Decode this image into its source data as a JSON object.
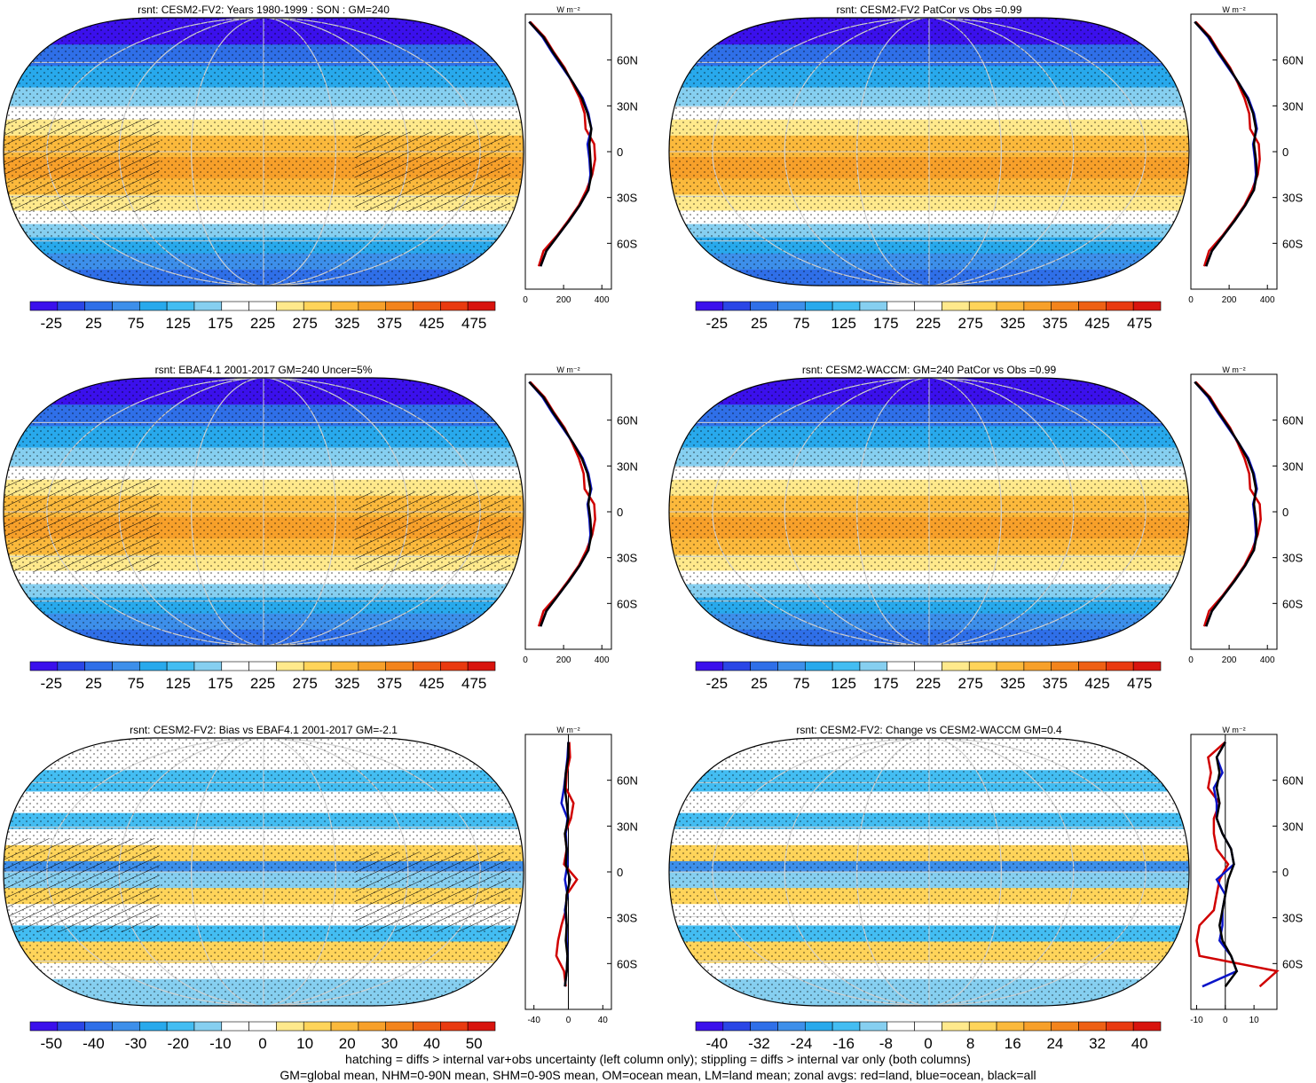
{
  "colors": {
    "cb_abs": [
      "#3b10ec",
      "#2a46e6",
      "#2f6fe8",
      "#3d8fea",
      "#28a9ec",
      "#43bdf2",
      "#86cff0",
      "#ffffff",
      "#ffffff",
      "#ffe98c",
      "#ffd45a",
      "#fbb93c",
      "#f7a02a",
      "#f3841c",
      "#ee6014",
      "#e93a10",
      "#d8140e"
    ],
    "cb_diff": [
      "#3b10ec",
      "#2a46e6",
      "#2f6fe8",
      "#3d8fea",
      "#28a9ec",
      "#43bdf2",
      "#86cff0",
      "#ffffff",
      "#ffffff",
      "#ffe98c",
      "#ffd45a",
      "#fbb93c",
      "#f7a02a",
      "#f3841c",
      "#ee6014",
      "#e93a10",
      "#d8140e"
    ],
    "land": "#d00000",
    "ocean": "#0a14c8",
    "all": "#000000"
  },
  "footer": {
    "line1": "hatching = diffs > internal var+obs uncertainty (left column only); stippling = diffs > internal var only (both columns)",
    "line2": "GM=global mean, NHM=0-90N mean, SHM=0-90S mean, OM=ocean mean, LM=land mean; zonal avgs: red=land, blue=ocean, black=all"
  },
  "chart_data": [
    {
      "type": "heatmap",
      "title": "rsnt: CESM2-FV2: Years 1980-1999 : SON : GM=240",
      "colorbar_labels": [
        "-25",
        "25",
        "75",
        "125",
        "175",
        "225",
        "275",
        "325",
        "375",
        "425",
        "475"
      ],
      "zonal_unit": "W m⁻²",
      "zonal_x_labels": [
        "0",
        "200",
        "400"
      ],
      "zonal_xlim": [
        0,
        450
      ],
      "lat_labels": [
        "60N",
        "30N",
        "0",
        "30S",
        "60S"
      ],
      "zonal_mean": {
        "lat": [
          85,
          75,
          65,
          55,
          45,
          35,
          25,
          15,
          5,
          -5,
          -15,
          -25,
          -35,
          -45,
          -55,
          -65,
          -75
        ],
        "all": [
          20,
          95,
          145,
          200,
          250,
          295,
          325,
          345,
          335,
          340,
          345,
          330,
          285,
          230,
          170,
          110,
          80
        ],
        "ocean": [
          20,
          90,
          140,
          195,
          250,
          300,
          330,
          345,
          325,
          335,
          340,
          330,
          285,
          230,
          170,
          110,
          80
        ],
        "land": [
          25,
          100,
          150,
          205,
          245,
          285,
          310,
          315,
          360,
          365,
          350,
          320,
          280,
          225,
          165,
          95,
          70
        ]
      }
    },
    {
      "type": "heatmap",
      "title": "rsnt: CESM2-FV2 PatCor vs Obs =0.99",
      "colorbar_labels": [
        "-25",
        "25",
        "75",
        "125",
        "175",
        "225",
        "275",
        "325",
        "375",
        "425",
        "475"
      ],
      "zonal_unit": "W m⁻²",
      "zonal_x_labels": [
        "0",
        "200",
        "400"
      ],
      "zonal_xlim": [
        0,
        450
      ],
      "lat_labels": [
        "60N",
        "30N",
        "0",
        "30S",
        "60S"
      ],
      "zonal_mean": {
        "lat": [
          85,
          75,
          65,
          55,
          45,
          35,
          25,
          15,
          5,
          -5,
          -15,
          -25,
          -35,
          -45,
          -55,
          -65,
          -75
        ],
        "all": [
          20,
          95,
          145,
          200,
          250,
          295,
          325,
          340,
          330,
          340,
          345,
          330,
          285,
          230,
          170,
          110,
          80
        ],
        "ocean": [
          20,
          90,
          140,
          195,
          250,
          300,
          330,
          345,
          325,
          335,
          340,
          330,
          285,
          230,
          170,
          110,
          80
        ],
        "land": [
          25,
          100,
          150,
          205,
          245,
          280,
          305,
          310,
          355,
          360,
          350,
          320,
          280,
          225,
          165,
          95,
          70
        ]
      }
    },
    {
      "type": "heatmap",
      "title": "rsnt: EBAF4.1 2001-2017 GM=240 Uncer=5%",
      "colorbar_labels": [
        "-25",
        "25",
        "75",
        "125",
        "175",
        "225",
        "275",
        "325",
        "375",
        "425",
        "475"
      ],
      "zonal_unit": "W m⁻²",
      "zonal_x_labels": [
        "0",
        "200",
        "400"
      ],
      "zonal_xlim": [
        0,
        450
      ],
      "lat_labels": [
        "60N",
        "30N",
        "0",
        "30S",
        "60S"
      ],
      "zonal_mean": {
        "lat": [
          85,
          75,
          65,
          55,
          45,
          35,
          25,
          15,
          5,
          -5,
          -15,
          -25,
          -35,
          -45,
          -55,
          -65,
          -75
        ],
        "all": [
          20,
          95,
          145,
          200,
          250,
          295,
          325,
          340,
          330,
          340,
          345,
          330,
          285,
          230,
          170,
          110,
          80
        ],
        "ocean": [
          20,
          90,
          140,
          195,
          250,
          300,
          330,
          345,
          325,
          335,
          340,
          330,
          285,
          230,
          170,
          110,
          80
        ],
        "land": [
          25,
          100,
          150,
          205,
          245,
          280,
          305,
          310,
          360,
          365,
          350,
          320,
          280,
          225,
          165,
          95,
          70
        ]
      }
    },
    {
      "type": "heatmap",
      "title": "rsnt: CESM2-WACCM: GM=240 PatCor vs Obs =0.99",
      "colorbar_labels": [
        "-25",
        "25",
        "75",
        "125",
        "175",
        "225",
        "275",
        "325",
        "375",
        "425",
        "475"
      ],
      "zonal_unit": "W m⁻²",
      "zonal_x_labels": [
        "0",
        "200",
        "400"
      ],
      "zonal_xlim": [
        0,
        450
      ],
      "lat_labels": [
        "60N",
        "30N",
        "0",
        "30S",
        "60S"
      ],
      "zonal_mean": {
        "lat": [
          85,
          75,
          65,
          55,
          45,
          35,
          25,
          15,
          5,
          -5,
          -15,
          -25,
          -35,
          -45,
          -55,
          -65,
          -75
        ],
        "all": [
          20,
          95,
          145,
          200,
          250,
          295,
          325,
          340,
          330,
          340,
          345,
          330,
          285,
          230,
          170,
          110,
          80
        ],
        "ocean": [
          20,
          90,
          140,
          195,
          250,
          300,
          330,
          345,
          325,
          335,
          340,
          330,
          285,
          230,
          170,
          110,
          80
        ],
        "land": [
          25,
          100,
          150,
          205,
          245,
          280,
          305,
          310,
          360,
          365,
          350,
          320,
          280,
          225,
          165,
          95,
          70
        ]
      }
    },
    {
      "type": "heatmap",
      "title": "rsnt: CESM2-FV2: Bias vs EBAF4.1 2001-2017  GM=-2.1",
      "colorbar_labels": [
        "-50",
        "-40",
        "-30",
        "-20",
        "-10",
        "0",
        "10",
        "20",
        "30",
        "40",
        "50"
      ],
      "zonal_unit": "W m⁻²",
      "zonal_x_labels": [
        "-40",
        "0",
        "40"
      ],
      "zonal_xlim": [
        -50,
        50
      ],
      "lat_labels": [
        "60N",
        "30N",
        "0",
        "30S",
        "60S"
      ],
      "zonal_mean": {
        "lat": [
          85,
          75,
          65,
          55,
          45,
          35,
          25,
          15,
          5,
          -5,
          -15,
          -25,
          -35,
          -45,
          -55,
          -65,
          -75
        ],
        "all": [
          0,
          0,
          -3,
          -4,
          -2,
          0,
          -4,
          -2,
          -3,
          2,
          -2,
          -3,
          -2,
          -3,
          -1,
          -2,
          -4
        ],
        "ocean": [
          0,
          -1,
          -3,
          -5,
          -8,
          -1,
          -3,
          -2,
          -1,
          -4,
          -1,
          -4,
          -2,
          -2,
          -1,
          -2,
          -4
        ],
        "land": [
          1,
          2,
          -2,
          -3,
          6,
          3,
          -4,
          -2,
          -5,
          10,
          -2,
          -3,
          -8,
          -12,
          -14,
          -5,
          -3
        ]
      }
    },
    {
      "type": "heatmap",
      "title": "rsnt: CESM2-FV2: Change vs CESM2-WACCM GM=0.4",
      "colorbar_labels": [
        "-40",
        "-32",
        "-24",
        "-16",
        "-8",
        "0",
        "8",
        "16",
        "24",
        "32",
        "40"
      ],
      "zonal_unit": "W m⁻²",
      "zonal_x_labels": [
        "-10",
        "0",
        "10"
      ],
      "zonal_xlim": [
        -12,
        18
      ],
      "lat_labels": [
        "60N",
        "30N",
        "0",
        "30S",
        "60S"
      ],
      "zonal_mean": {
        "lat": [
          85,
          75,
          65,
          55,
          45,
          35,
          25,
          15,
          5,
          -5,
          -15,
          -25,
          -35,
          -45,
          -55,
          -65,
          -75
        ],
        "all": [
          0,
          -3,
          -2,
          -3,
          -2,
          -3,
          -1,
          2,
          3,
          1,
          0,
          -1,
          -2,
          -1,
          2,
          4,
          0
        ],
        "ocean": [
          0,
          -3,
          -1,
          -4,
          -3,
          -3,
          -1,
          2,
          3,
          -3,
          0,
          -1,
          -1,
          -2,
          2,
          4,
          -8
        ],
        "land": [
          0,
          -6,
          -5,
          -6,
          -2,
          -4,
          -4,
          -3,
          1,
          -2,
          -3,
          -4,
          -9,
          -10,
          -9,
          18,
          12
        ]
      }
    }
  ]
}
